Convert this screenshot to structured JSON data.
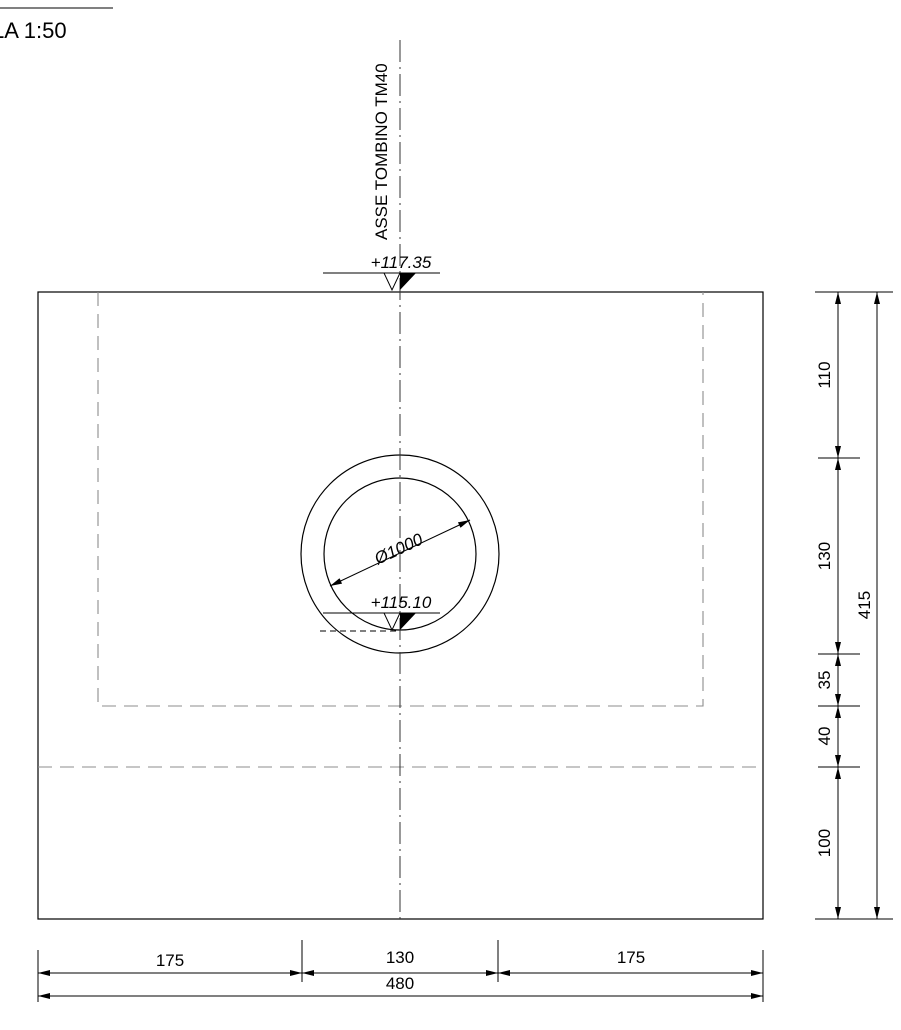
{
  "scale_label": "LA 1:50",
  "axis_label": "ASSE TOMBINO  TM40",
  "elevations": {
    "top": "+117.35",
    "invert": "+115.10"
  },
  "pipe": {
    "diameter_label": "Ø1000"
  },
  "horizontal_dimensions": {
    "left": "175",
    "middle": "130",
    "right": "175",
    "total": "480"
  },
  "vertical_dimensions": {
    "segments": [
      "110",
      "130",
      "35",
      "40",
      "100"
    ],
    "total": "415"
  },
  "colors": {
    "body_fill": "#dcdcdc",
    "hidden_line": "#8c8c8c",
    "line": "#000000"
  }
}
